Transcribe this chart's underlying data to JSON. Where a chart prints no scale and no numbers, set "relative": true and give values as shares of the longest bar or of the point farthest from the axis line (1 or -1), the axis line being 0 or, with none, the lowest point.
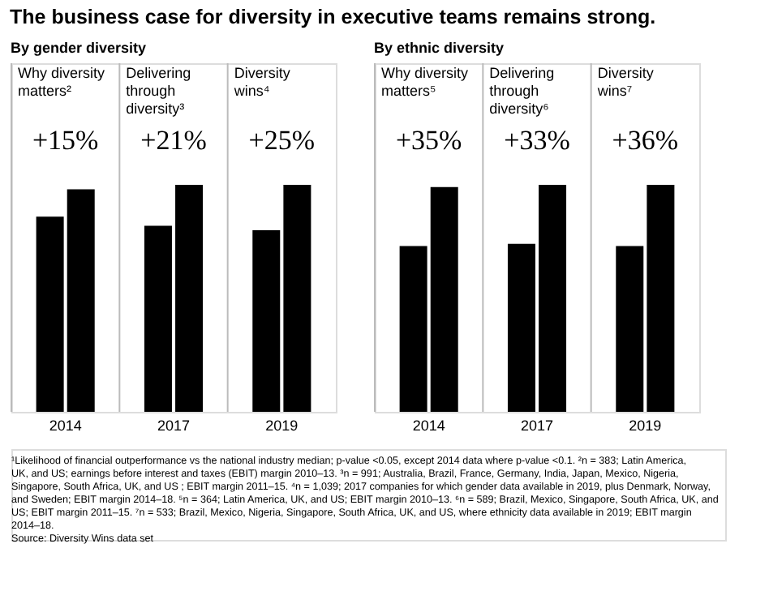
{
  "chart_data": [
    {
      "type": "bar",
      "title": "The business case for diversity in executive teams remains strong.",
      "subtitle": "By gender diversity",
      "relative": true,
      "categories": [
        "2014",
        "2017",
        "2019"
      ],
      "series": [
        {
          "color": "#000000",
          "values": [
            0.86,
            0.82,
            0.8
          ]
        },
        {
          "color": "#000000",
          "values": [
            0.98,
            1.0,
            1.0
          ]
        }
      ],
      "annotations": [
        "Why diversity matters²",
        "+15%",
        "Delivering through diversity³",
        "+21%",
        "Diversity wins⁴",
        "+25%"
      ]
    },
    {
      "type": "bar",
      "subtitle": "By ethnic diversity",
      "relative": true,
      "categories": [
        "2014",
        "2017",
        "2019"
      ],
      "series": [
        {
          "color": "#000000",
          "values": [
            0.73,
            0.74,
            0.73
          ]
        },
        {
          "color": "#000000",
          "values": [
            0.99,
            1.0,
            1.0
          ]
        }
      ],
      "annotations": [
        "Why diversity matters⁵",
        "+35%",
        "Delivering through diversity⁶",
        "+33%",
        "Diversity wins⁷",
        "+36%",
        "¹Likelihood of financial outperformance vs the national industry median; p-value <0.05, except 2014 data where p-value <0.1. ²n = 383; Latin America, UK, and US; earnings before interest and taxes (EBIT) margin 2010–13. ³n = 991; Australia, Brazil, France, Germany, India, Japan, Mexico, Nigeria, Singapore, South Africa, UK, and US ; EBIT margin 2011–15. ⁴n = 1,039; 2017 companies for which gender data available in 2019, plus Denmark, Norway, and Sweden; EBIT margin 2014–18. ⁵n = 364; Latin America, UK, and US; EBIT margin 2010–13. ⁶n = 589; Brazil, Mexico, Singapore, South Africa, UK, and US; EBIT margin 2011–15. ⁷n = 533; Brazil, Mexico, Nigeria, Singapore, South Africa, UK, and US, where ethnicity data available in 2019; EBIT margin 2014–18.",
        "Source: Diversity Wins data set"
      ]
    }
  ]
}
